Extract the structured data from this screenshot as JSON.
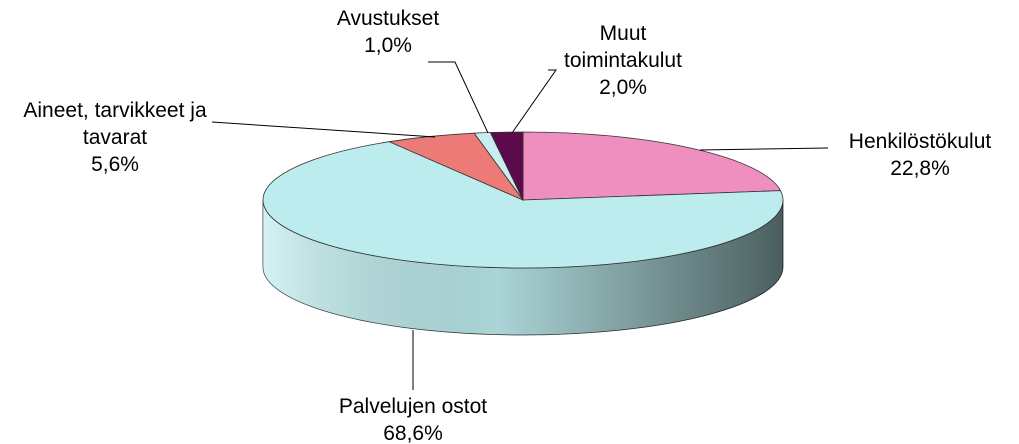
{
  "chart_data": {
    "type": "pie",
    "categories": [
      "Henkilöstökulut",
      "Palvelujen ostot",
      "Aineet, tarvikkeet ja tavarat",
      "Avustukset",
      "Muut toimintakulut"
    ],
    "values": [
      22.8,
      68.6,
      5.6,
      1.0,
      2.0
    ],
    "value_labels": [
      "22,8%",
      "68,6%",
      "5,6%",
      "1,0%",
      "2,0%"
    ],
    "colors": [
      "#ee8fbf",
      "#bdecee",
      "#ec7a77",
      "#c8eef0",
      "#5c0a4c"
    ]
  }
}
